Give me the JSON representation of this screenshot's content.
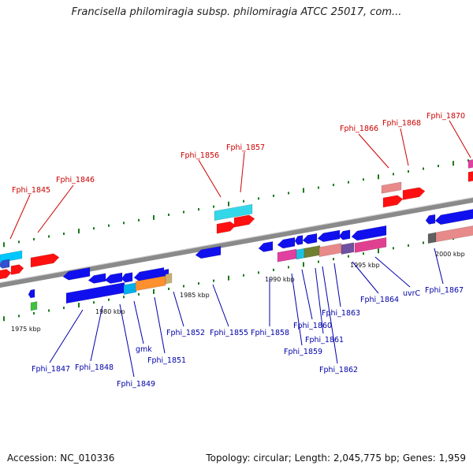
{
  "title": "Francisella philomiragia subsp. philomiragia ATCC 25017, com...",
  "footer": {
    "accession": "Accession: NC_010336",
    "info": "Topology: circular; Length: 2,045,775 bp; Genes: 1,959"
  },
  "colors": {
    "top_label": "#cc0000",
    "bottom_label": "#0000aa",
    "forward_gene": "#ff1010",
    "reverse_gene": "#1010ee",
    "backbone": "#8a8a8a",
    "tick": "#1a7a1a"
  },
  "scale_labels": [
    "1975 kbp",
    "1980 kbp",
    "1985 kbp",
    "1990 kbp",
    "1995 kbp",
    "2000 kbp"
  ],
  "top_labels": [
    "Fphi_1845",
    "Fphi_1846",
    "Fphi_1856",
    "Fphi_1857",
    "Fphi_1866",
    "Fphi_1868",
    "Fphi_1870"
  ],
  "bottom_labels": [
    "Fphi_1847",
    "Fphi_1848",
    "Fphi_1849",
    "gmk",
    "Fphi_1851",
    "Fphi_1852",
    "Fphi_1855",
    "Fphi_1858",
    "Fphi_1859",
    "Fphi_1860",
    "Fphi_1861",
    "Fphi_1862",
    "Fphi_1863",
    "Fphi_1864",
    "uvrC",
    "Fphi_1867"
  ]
}
